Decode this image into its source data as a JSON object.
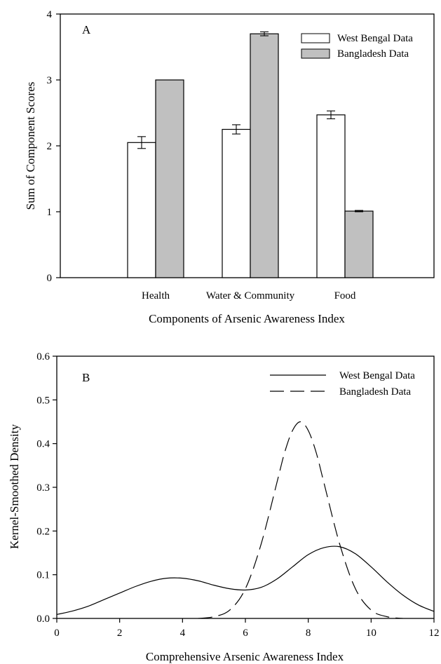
{
  "chart_data": [
    {
      "type": "bar",
      "panel_label": "A",
      "xlabel": "Components of Arsenic Awareness Index",
      "ylabel": "Sum of Component Scores",
      "categories": [
        "Health",
        "Water & Community",
        "Food"
      ],
      "ylim": [
        0,
        4
      ],
      "yticks": [
        "0",
        "1",
        "2",
        "3",
        "4"
      ],
      "series": [
        {
          "name": "West Bengal Data",
          "values": [
            2.05,
            2.25,
            2.47
          ],
          "errors": [
            0.09,
            0.07,
            0.06
          ],
          "color": "#ffffff"
        },
        {
          "name": "Bangladesh Data",
          "values": [
            3.0,
            3.7,
            1.01
          ],
          "errors": [
            0.0,
            0.03,
            0.01
          ],
          "color": "#c0c0c0"
        }
      ],
      "legend_position": "top-right",
      "grid": false
    },
    {
      "type": "line",
      "panel_label": "B",
      "xlabel": "Comprehensive Arsenic Awareness Index",
      "ylabel": "Kernel-Smoothed Density",
      "xlim": [
        0,
        12
      ],
      "ylim": [
        0,
        0.6
      ],
      "xticks": [
        "0",
        "2",
        "4",
        "6",
        "8",
        "10",
        "12"
      ],
      "yticks": [
        "0.0",
        "0.1",
        "0.2",
        "0.3",
        "0.4",
        "0.5",
        "0.6"
      ],
      "series": [
        {
          "name": "West Bengal Data",
          "style": "solid",
          "x": [
            0,
            0.5,
            1,
            1.5,
            2,
            2.5,
            3,
            3.5,
            4,
            4.5,
            5,
            5.5,
            6,
            6.5,
            7,
            7.5,
            8,
            8.5,
            9,
            9.5,
            10,
            10.5,
            11,
            11.5,
            12
          ],
          "y": [
            0.009,
            0.017,
            0.028,
            0.043,
            0.058,
            0.073,
            0.085,
            0.092,
            0.092,
            0.086,
            0.076,
            0.068,
            0.065,
            0.071,
            0.09,
            0.118,
            0.146,
            0.162,
            0.164,
            0.148,
            0.118,
            0.084,
            0.054,
            0.031,
            0.016
          ]
        },
        {
          "name": "Bangladesh Data",
          "style": "dashed",
          "x": [
            4.5,
            5,
            5.5,
            6,
            6.5,
            7,
            7.25,
            7.5,
            7.75,
            8,
            8.25,
            8.5,
            9,
            9.5,
            10,
            10.5,
            11
          ],
          "y": [
            0.0,
            0.004,
            0.019,
            0.068,
            0.17,
            0.31,
            0.38,
            0.43,
            0.45,
            0.43,
            0.38,
            0.31,
            0.17,
            0.068,
            0.019,
            0.004,
            0.0
          ]
        }
      ],
      "legend_position": "top-right",
      "grid": false
    }
  ]
}
